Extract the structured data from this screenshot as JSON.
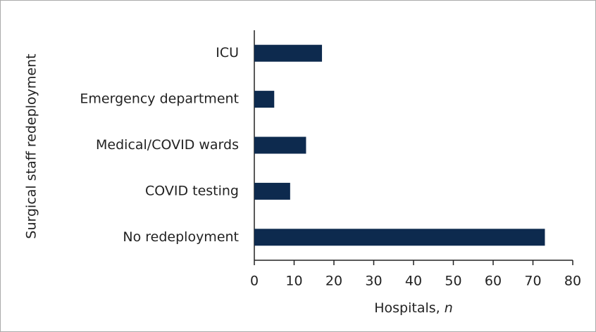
{
  "chart_data": {
    "type": "bar",
    "orientation": "horizontal",
    "y_label": "Surgical staff redeployment",
    "x_label": {
      "text": "Hospitals,",
      "variable": "n"
    },
    "categories": [
      "ICU",
      "Emergency department",
      "Medical/COVID wards",
      "COVID testing",
      "No redeployment"
    ],
    "values": [
      17,
      5,
      13,
      9,
      73
    ],
    "color": "#0d2a4e",
    "xlim": [
      0,
      80
    ],
    "xticks": [
      0,
      10,
      20,
      30,
      40,
      50,
      60,
      70,
      80
    ]
  }
}
